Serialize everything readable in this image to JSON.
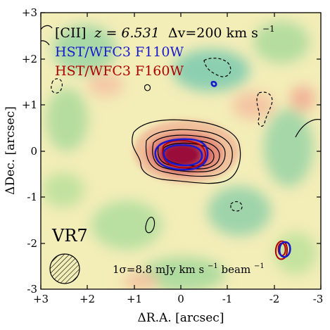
{
  "figure": {
    "annotations": {
      "line_prefix": "[CII]",
      "redshift": "z = 6.531",
      "velocity": "Δv=200 km s",
      "velocity_exp": "−1",
      "filter_blue": "HST/WFC3 F110W",
      "filter_red": "HST/WFC3 F160W",
      "source_name": "VR7",
      "noise_prefix": "1σ=8.8 mJy km s",
      "noise_exp1": "−1",
      "noise_mid": " beam",
      "noise_exp2": "−1"
    },
    "axes": {
      "xlabel": "ΔR.A. [arcsec]",
      "ylabel": "ΔDec. [arcsec]",
      "x_ticks": [
        "+3",
        "+2",
        "+1",
        "0",
        "-1",
        "-2",
        "-3"
      ],
      "y_ticks": [
        "+3",
        "+2",
        "+1",
        "0",
        "-1",
        "-2",
        "-3"
      ]
    },
    "colors": {
      "blue_contour": "#1a1acc",
      "red_contour": "#b00000",
      "map_core": "#9a0f3a",
      "map_green": "#7fc9a0",
      "map_background": "#f3edb8"
    }
  },
  "chart_data": {
    "type": "contour-map",
    "xlabel": "ΔR.A. [arcsec]",
    "ylabel": "ΔDec. [arcsec]",
    "xlim": [
      3,
      -3
    ],
    "ylim": [
      -3,
      3
    ],
    "x_ticks": [
      3,
      2,
      1,
      0,
      -1,
      -2,
      -3
    ],
    "y_ticks": [
      3,
      2,
      1,
      0,
      -1,
      -2,
      -3
    ],
    "source": {
      "name": "VR7",
      "center_ra": 0.0,
      "center_dec": -0.15
    },
    "contours": {
      "color": "black",
      "negative_style": "dashed"
    },
    "series": [
      {
        "name": "HST/WFC3 F110W",
        "color": "#1a1acc"
      },
      {
        "name": "HST/WFC3 F160W",
        "color": "#b00000"
      }
    ],
    "beam": {
      "ra": 2.5,
      "dec": -2.5
    },
    "noise": "1σ=8.8 mJy km s^-1 beam^-1"
  }
}
